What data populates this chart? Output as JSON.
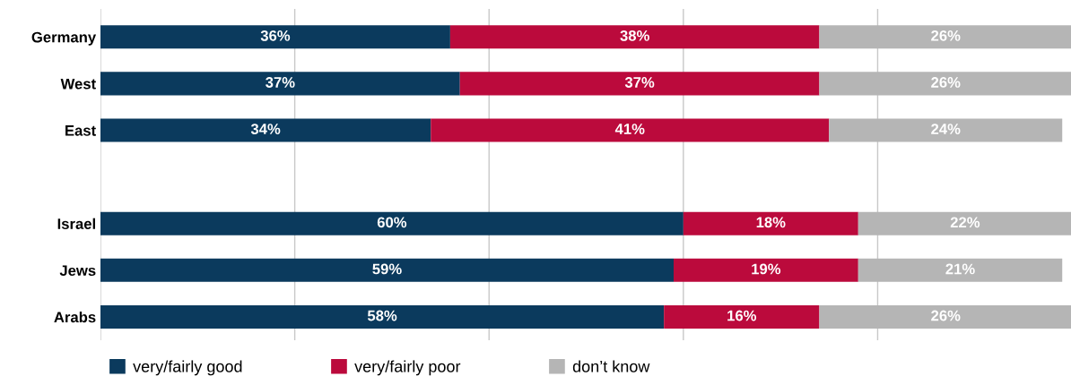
{
  "chart_data": {
    "type": "bar",
    "orientation": "horizontal",
    "stacked": true,
    "categories": [
      "Germany",
      "West",
      "East",
      null,
      "Israel",
      "Jews",
      "Arabs"
    ],
    "series": [
      {
        "name": "very/fairly good",
        "color": "#0b3a5d",
        "values": [
          36,
          37,
          34,
          null,
          60,
          59,
          58
        ],
        "value_labels": [
          "36%",
          "37%",
          "34%",
          null,
          "60%",
          "59%",
          "58%"
        ]
      },
      {
        "name": "very/fairly poor",
        "color": "#bb0a3c",
        "values": [
          38,
          37,
          41,
          null,
          18,
          19,
          16
        ],
        "value_labels": [
          "38%",
          "37%",
          "41%",
          null,
          "18%",
          "19%",
          "16%"
        ]
      },
      {
        "name": "don’t know",
        "color": "#b5b5b5",
        "values": [
          26,
          26,
          24,
          null,
          22,
          21,
          26
        ],
        "value_labels": [
          "26%",
          "26%",
          "24%",
          null,
          "22%",
          "21%",
          "26%"
        ]
      }
    ],
    "tick_labels": "y",
    "grid": "x",
    "legend": "bottom"
  }
}
